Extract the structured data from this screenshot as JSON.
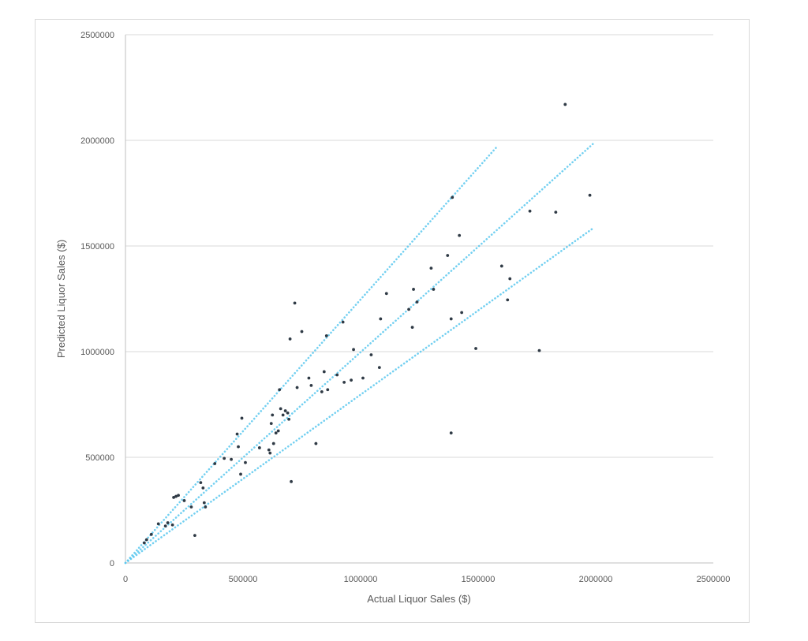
{
  "chart_data": {
    "type": "scatter",
    "title": "",
    "xlabel": "Actual Liquor Sales ($)",
    "ylabel": "Predicted Liquor Sales ($)",
    "xlim": [
      0,
      2500000
    ],
    "ylim": [
      0,
      2500000
    ],
    "xticks": [
      "0",
      "500000",
      "1000000",
      "1500000",
      "2000000",
      "2500000"
    ],
    "yticks": [
      "0",
      "500000",
      "1000000",
      "1500000",
      "2000000",
      "2500000"
    ],
    "grid": "horizontal",
    "legend": "none",
    "colors": {
      "points": "#2f3a45",
      "reference_lines": "#5bc8ef",
      "grid": "#d9d9d9",
      "axis": "#bfbfbf",
      "text": "#595959"
    },
    "reference_lines": [
      {
        "x": [
          0,
          1580000
        ],
        "y": [
          0,
          1970000
        ]
      },
      {
        "x": [
          0,
          1990000
        ],
        "y": [
          0,
          1985000
        ]
      },
      {
        "x": [
          0,
          1990000
        ],
        "y": [
          0,
          1585000
        ]
      }
    ],
    "points": [
      [
        80000,
        95000
      ],
      [
        90000,
        110000
      ],
      [
        110000,
        135000
      ],
      [
        140000,
        185000
      ],
      [
        170000,
        175000
      ],
      [
        180000,
        190000
      ],
      [
        200000,
        180000
      ],
      [
        205000,
        310000
      ],
      [
        215000,
        315000
      ],
      [
        225000,
        320000
      ],
      [
        250000,
        295000
      ],
      [
        280000,
        265000
      ],
      [
        295000,
        130000
      ],
      [
        320000,
        380000
      ],
      [
        330000,
        355000
      ],
      [
        335000,
        285000
      ],
      [
        340000,
        265000
      ],
      [
        380000,
        470000
      ],
      [
        420000,
        495000
      ],
      [
        450000,
        490000
      ],
      [
        475000,
        610000
      ],
      [
        480000,
        550000
      ],
      [
        490000,
        420000
      ],
      [
        495000,
        685000
      ],
      [
        510000,
        475000
      ],
      [
        570000,
        545000
      ],
      [
        610000,
        535000
      ],
      [
        615000,
        520000
      ],
      [
        620000,
        660000
      ],
      [
        625000,
        700000
      ],
      [
        630000,
        565000
      ],
      [
        640000,
        615000
      ],
      [
        650000,
        625000
      ],
      [
        655000,
        820000
      ],
      [
        660000,
        730000
      ],
      [
        670000,
        700000
      ],
      [
        680000,
        720000
      ],
      [
        690000,
        710000
      ],
      [
        695000,
        680000
      ],
      [
        700000,
        1060000
      ],
      [
        705000,
        385000
      ],
      [
        720000,
        1230000
      ],
      [
        730000,
        830000
      ],
      [
        750000,
        1095000
      ],
      [
        780000,
        875000
      ],
      [
        790000,
        840000
      ],
      [
        810000,
        565000
      ],
      [
        835000,
        810000
      ],
      [
        845000,
        905000
      ],
      [
        855000,
        1075000
      ],
      [
        860000,
        820000
      ],
      [
        900000,
        890000
      ],
      [
        925000,
        1140000
      ],
      [
        930000,
        855000
      ],
      [
        960000,
        865000
      ],
      [
        970000,
        1010000
      ],
      [
        1010000,
        875000
      ],
      [
        1045000,
        985000
      ],
      [
        1080000,
        925000
      ],
      [
        1085000,
        1155000
      ],
      [
        1110000,
        1275000
      ],
      [
        1205000,
        1200000
      ],
      [
        1220000,
        1115000
      ],
      [
        1225000,
        1295000
      ],
      [
        1240000,
        1235000
      ],
      [
        1300000,
        1395000
      ],
      [
        1310000,
        1295000
      ],
      [
        1370000,
        1455000
      ],
      [
        1385000,
        615000
      ],
      [
        1385000,
        1155000
      ],
      [
        1390000,
        1730000
      ],
      [
        1420000,
        1550000
      ],
      [
        1430000,
        1185000
      ],
      [
        1490000,
        1015000
      ],
      [
        1600000,
        1405000
      ],
      [
        1625000,
        1245000
      ],
      [
        1635000,
        1345000
      ],
      [
        1720000,
        1665000
      ],
      [
        1760000,
        1005000
      ],
      [
        1830000,
        1660000
      ],
      [
        1870000,
        2170000
      ],
      [
        1975000,
        1740000
      ]
    ]
  }
}
